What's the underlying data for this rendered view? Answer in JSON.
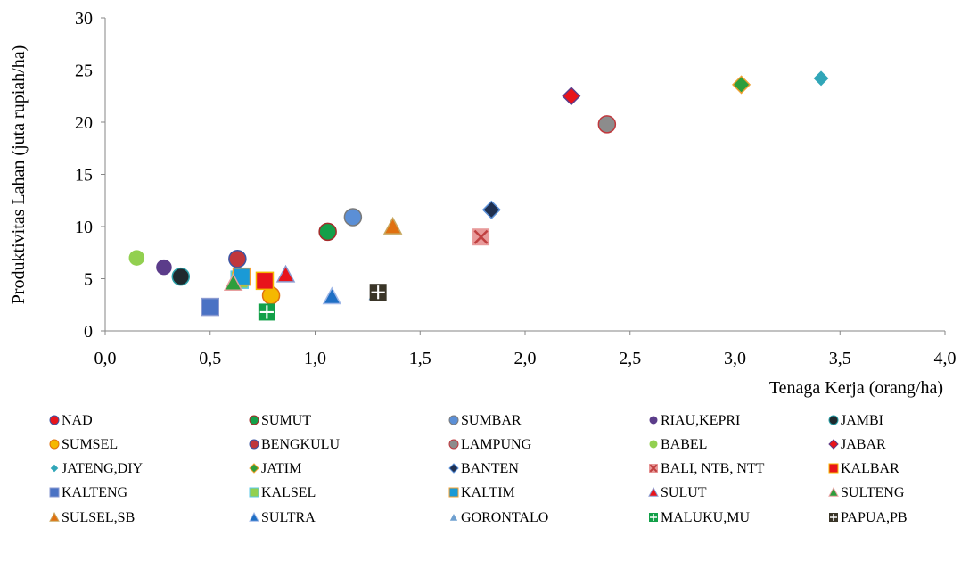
{
  "chart_data": {
    "type": "scatter",
    "title": "",
    "xlabel": "Tenaga Kerja (orang/ha)",
    "ylabel": "Produktivitas Lahan (juta rupiah/ha)",
    "xlim": [
      0,
      4
    ],
    "ylim": [
      0,
      30
    ],
    "x_ticks": [
      "0,0",
      "0,5",
      "1,0",
      "1,5",
      "2,0",
      "2,5",
      "3,0",
      "3,5",
      "4,0"
    ],
    "y_ticks": [
      "0",
      "5",
      "10",
      "15",
      "20",
      "25",
      "30"
    ],
    "grid": false,
    "legend_position": "bottom",
    "series": [
      {
        "name": "NAD",
        "marker": "circle",
        "color": "#e8141b",
        "stroke": "#3a55a4",
        "x": 0.64,
        "y": 5.2
      },
      {
        "name": "SUMUT",
        "marker": "circle",
        "color": "#13a049",
        "stroke": "#a52a2a",
        "x": 1.06,
        "y": 9.5
      },
      {
        "name": "SUMBAR",
        "marker": "circle",
        "color": "#5b8fd6",
        "stroke": "#7a7a7a",
        "x": 1.18,
        "y": 10.9
      },
      {
        "name": "RIAU,KEPRI",
        "marker": "circle",
        "color": "#5b3c8a",
        "stroke": "#ffffff",
        "x": 0.28,
        "y": 6.1
      },
      {
        "name": "JAMBI",
        "marker": "circle",
        "color": "#1f2a2e",
        "stroke": "#2aa0a8",
        "x": 0.36,
        "y": 5.2
      },
      {
        "name": "SUMSEL",
        "marker": "circle",
        "color": "#f5b800",
        "stroke": "#e07010",
        "x": 0.79,
        "y": 3.4
      },
      {
        "name": "BENGKULU",
        "marker": "circle",
        "color": "#c0373c",
        "stroke": "#3a55a4",
        "x": 0.63,
        "y": 6.9
      },
      {
        "name": "LAMPUNG",
        "marker": "circle",
        "color": "#8c8c8c",
        "stroke": "#c0373c",
        "x": 2.39,
        "y": 19.8
      },
      {
        "name": "BABEL",
        "marker": "circle",
        "color": "#92d050",
        "stroke": "#ffffff",
        "x": 0.15,
        "y": 7.0
      },
      {
        "name": "JABAR",
        "marker": "diamond",
        "color": "#e8141b",
        "stroke": "#5b3c8a",
        "x": 2.22,
        "y": 22.5
      },
      {
        "name": "JATENG,DIY",
        "marker": "diamond",
        "color": "#31a6b8",
        "stroke": "#ffffff",
        "x": 3.41,
        "y": 24.2
      },
      {
        "name": "JATIM",
        "marker": "diamond",
        "color": "#2e9e3c",
        "stroke": "#f0a030",
        "x": 3.03,
        "y": 23.6
      },
      {
        "name": "BANTEN",
        "marker": "diamond",
        "color": "#1f3050",
        "stroke": "#5b8fd6",
        "x": 1.84,
        "y": 11.6
      },
      {
        "name": "BALI, NTB, NTT",
        "marker": "x-square",
        "color": "#e89a9a",
        "stroke": "#c04040",
        "x": 1.79,
        "y": 9.0
      },
      {
        "name": "KALBAR",
        "marker": "square",
        "color": "#e8141b",
        "stroke": "#f5b800",
        "x": 0.76,
        "y": 4.8
      },
      {
        "name": "KALTENG",
        "marker": "square",
        "color": "#4a72c4",
        "stroke": "#8a9ad0",
        "x": 0.5,
        "y": 2.3
      },
      {
        "name": "KALSEL",
        "marker": "square",
        "color": "#92d050",
        "stroke": "#5bc8e8",
        "x": 0.64,
        "y": 4.9
      },
      {
        "name": "KALTIM",
        "marker": "square",
        "color": "#1a9ad6",
        "stroke": "#f5a030",
        "x": 0.65,
        "y": 5.2
      },
      {
        "name": "SULUT",
        "marker": "triangle",
        "color": "#e8141b",
        "stroke": "#8a9ad0",
        "x": 0.86,
        "y": 5.4
      },
      {
        "name": "SULTENG",
        "marker": "triangle",
        "color": "#2e9e3c",
        "stroke": "#e8a0a0",
        "x": 0.61,
        "y": 4.6
      },
      {
        "name": "SULSEL,SB",
        "marker": "triangle",
        "color": "#e07010",
        "stroke": "#c8a860",
        "x": 1.37,
        "y": 10.0
      },
      {
        "name": "SULTRA",
        "marker": "triangle",
        "color": "#1f6fc4",
        "stroke": "#a0b8e8",
        "x": 1.08,
        "y": 3.3
      },
      {
        "name": "GORONTALO",
        "marker": "triangle",
        "color": "#6fa0d0",
        "stroke": "#ffffff",
        "x": 1.29,
        "y": 3.6
      },
      {
        "name": "MALUKU,MU",
        "marker": "plus-square",
        "color": "#13a049",
        "stroke": "#13a049",
        "x": 0.77,
        "y": 1.8
      },
      {
        "name": "PAPUA,PB",
        "marker": "plus-square",
        "color": "#3a3528",
        "stroke": "#3a3528",
        "x": 1.3,
        "y": 3.7
      }
    ]
  }
}
